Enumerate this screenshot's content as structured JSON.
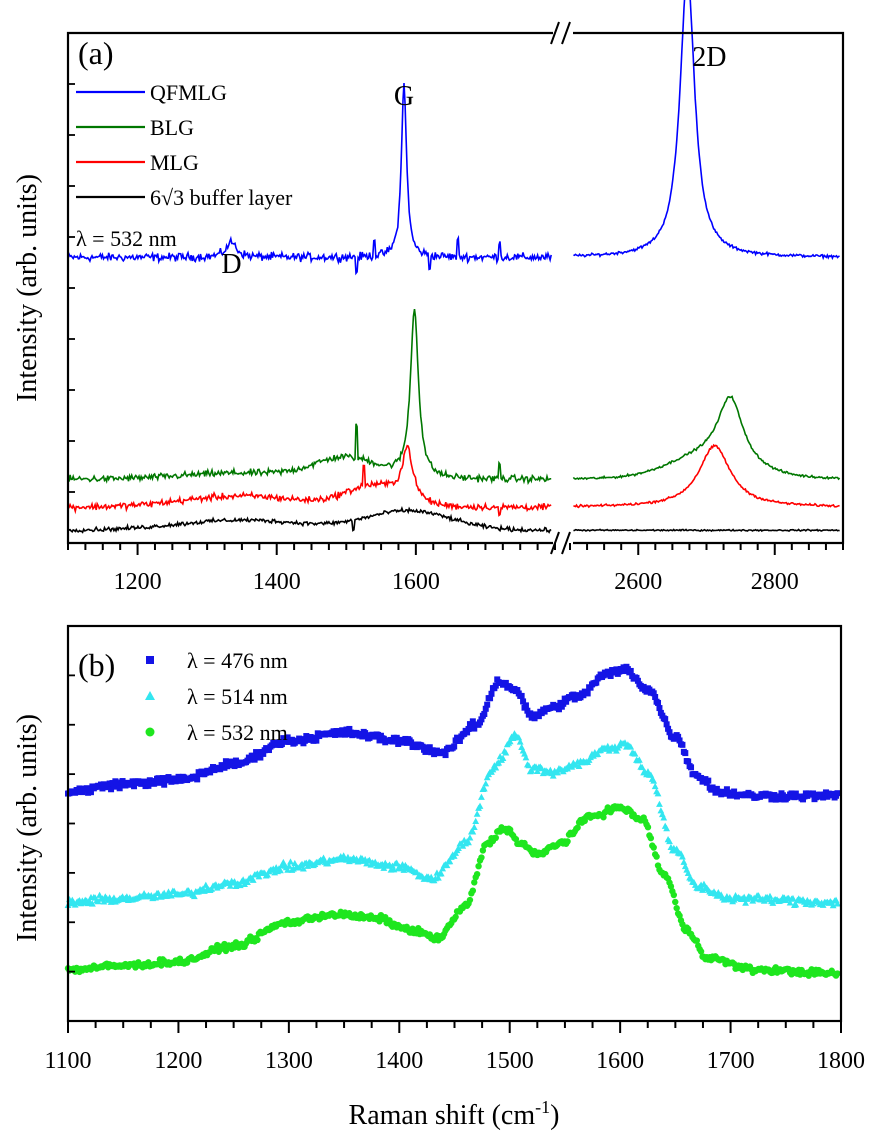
{
  "chart_data": [
    {
      "panel_label": "(a)",
      "type": "line",
      "ylabel": "Intensity (arb. units)",
      "xlabel": "",
      "y_tick_labels_shown": false,
      "axis_break": {
        "from": 1800,
        "to": 2500
      },
      "xlim_left": [
        1100,
        1800
      ],
      "xlim_right": [
        2500,
        2900
      ],
      "x_ticks": [
        1200,
        1400,
        1600,
        2600,
        2800
      ],
      "x_tick_labels": [
        "1200",
        "1400",
        "1600",
        "2600",
        "2800"
      ],
      "legend": {
        "placement": "top-left",
        "entries": [
          "QFMLG",
          "BLG",
          "MLG",
          "6√3 buffer layer"
        ]
      },
      "annotation_text": "λ = 532 nm",
      "peak_labels": [
        {
          "text": "D",
          "x": 1335
        },
        {
          "text": "G",
          "x": 1583
        },
        {
          "text": "2D",
          "x": 2672
        }
      ],
      "series": [
        {
          "name": "QFMLG",
          "color": "#0000ff",
          "baseline": 0.56,
          "noise": 0.01,
          "peaks": [
            {
              "x0": 1335,
              "w": 9,
              "h": 0.03,
              "shape": "lorentz"
            },
            {
              "x0": 1583,
              "w": 4.5,
              "h": 0.34,
              "shape": "lorentz"
            },
            {
              "x0": 2672,
              "w": 13,
              "h": 0.56,
              "shape": "lorentz"
            }
          ],
          "glitches": [
            {
              "x": 1515,
              "a": -0.03
            },
            {
              "x": 1540,
              "a": 0.03
            },
            {
              "x": 1620,
              "a": -0.025
            },
            {
              "x": 1660,
              "a": 0.03
            },
            {
              "x": 1720,
              "a": 0.03
            }
          ]
        },
        {
          "name": "BLG",
          "color": "#007700",
          "baseline": 0.125,
          "noise": 0.008,
          "peaks": [
            {
              "x0": 1350,
              "w": 85,
              "h": 0.012,
              "shape": "gauss"
            },
            {
              "x0": 1500,
              "w": 45,
              "h": 0.04,
              "shape": "gauss"
            },
            {
              "x0": 1598,
              "w": 7,
              "h": 0.33,
              "shape": "lorentz"
            },
            {
              "x0": 2700,
              "w": 55,
              "h": 0.04,
              "shape": "gauss"
            },
            {
              "x0": 2735,
              "w": 22,
              "h": 0.13,
              "shape": "lorentz"
            }
          ],
          "glitches": [
            {
              "x": 1515,
              "a": 0.06
            },
            {
              "x": 1720,
              "a": 0.03
            }
          ]
        },
        {
          "name": "MLG",
          "color": "#ff0000",
          "baseline": 0.07,
          "noise": 0.008,
          "peaks": [
            {
              "x0": 1350,
              "w": 85,
              "h": 0.022,
              "shape": "gauss"
            },
            {
              "x0": 1540,
              "w": 40,
              "h": 0.04,
              "shape": "gauss"
            },
            {
              "x0": 1588,
              "w": 9,
              "h": 0.1,
              "shape": "lorentz"
            },
            {
              "x0": 2712,
              "w": 28,
              "h": 0.12,
              "shape": "lorentz"
            }
          ],
          "glitches": [
            {
              "x": 1525,
              "a": 0.04
            },
            {
              "x": 1720,
              "a": -0.02
            }
          ]
        },
        {
          "name": "6√3 buffer layer",
          "color": "#000000",
          "baseline": 0.025,
          "noise": 0.005,
          "peaks": [
            {
              "x0": 1350,
              "w": 90,
              "h": 0.02,
              "shape": "gauss"
            },
            {
              "x0": 1590,
              "w": 60,
              "h": 0.038,
              "shape": "gauss"
            }
          ],
          "glitches": [
            {
              "x": 1510,
              "a": -0.02
            }
          ]
        }
      ]
    },
    {
      "panel_label": "(b)",
      "type": "scatter",
      "xlabel": "Raman shift (cm",
      "xlabel_superscript": "-1",
      "xlabel_end": ")",
      "ylabel": "Intensity (arb. units)",
      "y_tick_labels_shown": false,
      "xlim": [
        1100,
        1800
      ],
      "x_ticks": [
        1100,
        1200,
        1300,
        1400,
        1500,
        1600,
        1700,
        1800
      ],
      "x_tick_labels": [
        "1100",
        "1200",
        "1300",
        "1400",
        "1500",
        "1600",
        "1700",
        "1800"
      ],
      "legend": {
        "placement": "top-left",
        "entries": [
          "λ = 476 nm",
          "λ = 514 nm",
          "λ = 532 nm"
        ]
      },
      "series": [
        {
          "name": "λ = 476 nm",
          "color": "#1414e6",
          "marker": "square",
          "noise": 0.012,
          "points": [
            [
              1100,
              0.58
            ],
            [
              1150,
              0.6
            ],
            [
              1200,
              0.61
            ],
            [
              1250,
              0.65
            ],
            [
              1300,
              0.71
            ],
            [
              1350,
              0.73
            ],
            [
              1400,
              0.71
            ],
            [
              1440,
              0.68
            ],
            [
              1470,
              0.75
            ],
            [
              1490,
              0.86
            ],
            [
              1505,
              0.84
            ],
            [
              1520,
              0.77
            ],
            [
              1535,
              0.79
            ],
            [
              1560,
              0.82
            ],
            [
              1590,
              0.88
            ],
            [
              1605,
              0.89
            ],
            [
              1625,
              0.84
            ],
            [
              1650,
              0.72
            ],
            [
              1670,
              0.62
            ],
            [
              1690,
              0.58
            ],
            [
              1720,
              0.57
            ],
            [
              1800,
              0.57
            ]
          ]
        },
        {
          "name": "λ = 514 nm",
          "color": "#33e6f0",
          "marker": "triangle",
          "noise": 0.012,
          "points": [
            [
              1100,
              0.3
            ],
            [
              1150,
              0.31
            ],
            [
              1200,
              0.32
            ],
            [
              1250,
              0.35
            ],
            [
              1300,
              0.39
            ],
            [
              1350,
              0.41
            ],
            [
              1400,
              0.39
            ],
            [
              1430,
              0.36
            ],
            [
              1460,
              0.45
            ],
            [
              1485,
              0.64
            ],
            [
              1505,
              0.72
            ],
            [
              1520,
              0.64
            ],
            [
              1540,
              0.63
            ],
            [
              1560,
              0.65
            ],
            [
              1590,
              0.69
            ],
            [
              1605,
              0.7
            ],
            [
              1625,
              0.63
            ],
            [
              1650,
              0.43
            ],
            [
              1670,
              0.34
            ],
            [
              1700,
              0.31
            ],
            [
              1800,
              0.3
            ]
          ]
        },
        {
          "name": "λ = 532 nm",
          "color": "#1ee61e",
          "marker": "circle",
          "noise": 0.01,
          "points": [
            [
              1100,
              0.13
            ],
            [
              1150,
              0.14
            ],
            [
              1200,
              0.15
            ],
            [
              1250,
              0.19
            ],
            [
              1300,
              0.25
            ],
            [
              1340,
              0.27
            ],
            [
              1380,
              0.26
            ],
            [
              1410,
              0.23
            ],
            [
              1435,
              0.21
            ],
            [
              1460,
              0.29
            ],
            [
              1480,
              0.45
            ],
            [
              1495,
              0.49
            ],
            [
              1510,
              0.45
            ],
            [
              1525,
              0.42
            ],
            [
              1545,
              0.45
            ],
            [
              1575,
              0.52
            ],
            [
              1600,
              0.54
            ],
            [
              1620,
              0.51
            ],
            [
              1640,
              0.37
            ],
            [
              1660,
              0.23
            ],
            [
              1680,
              0.16
            ],
            [
              1720,
              0.13
            ],
            [
              1800,
              0.12
            ]
          ]
        }
      ]
    }
  ]
}
